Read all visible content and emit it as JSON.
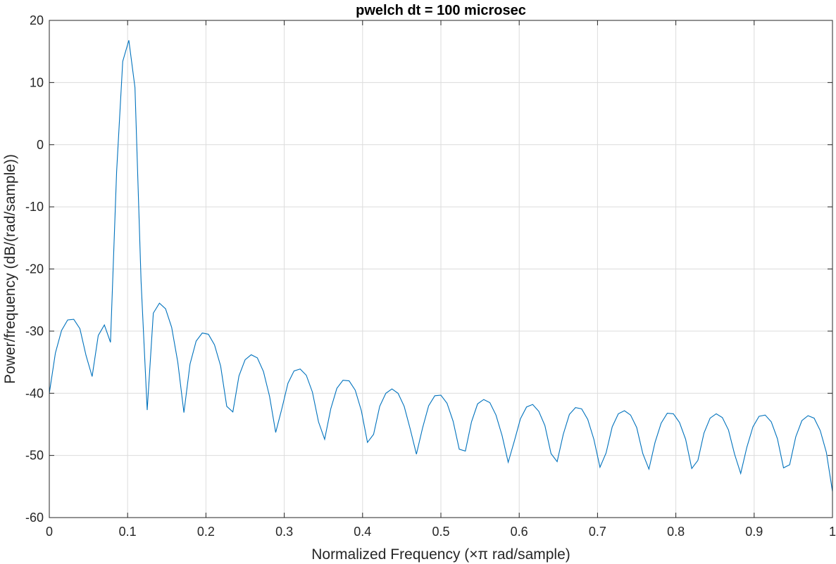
{
  "chart_data": {
    "type": "line",
    "title": "pwelch dt = 100 microsec",
    "xlabel": "Normalized Frequency  (×π rad/sample)",
    "ylabel": "Power/frequency (dB/(rad/sample))",
    "xlim": [
      0,
      1
    ],
    "ylim": [
      -60,
      20
    ],
    "xticks": [
      0,
      0.1,
      0.2,
      0.3,
      0.4,
      0.5,
      0.6,
      0.7,
      0.8,
      0.9,
      1
    ],
    "xtick_labels": [
      "0",
      "0.1",
      "0.2",
      "0.3",
      "0.4",
      "0.5",
      "0.6",
      "0.7",
      "0.8",
      "0.9",
      "1"
    ],
    "yticks": [
      -60,
      -50,
      -40,
      -30,
      -20,
      -10,
      0,
      10,
      20
    ],
    "ytick_labels": [
      "-60",
      "-50",
      "-40",
      "-30",
      "-20",
      "-10",
      "0",
      "10",
      "20"
    ],
    "grid": true,
    "line_color": "#0072BD",
    "series": [
      {
        "x": [
          0,
          0.0078125,
          0.015625,
          0.0234375,
          0.03125,
          0.0390625,
          0.046875,
          0.0546875,
          0.0625,
          0.0703125,
          0.078125,
          0.0859375,
          0.09375,
          0.1015625,
          0.109375,
          0.1171875,
          0.125,
          0.1328125,
          0.140625,
          0.1484375,
          0.15625,
          0.1640625,
          0.171875,
          0.1796875,
          0.1875,
          0.1953125,
          0.203125,
          0.2109375,
          0.21875,
          0.2265625,
          0.234375,
          0.2421875,
          0.25,
          0.2578125,
          0.265625,
          0.2734375,
          0.28125,
          0.2890625,
          0.296875,
          0.3046875,
          0.3125,
          0.3203125,
          0.328125,
          0.3359375,
          0.34375,
          0.3515625,
          0.359375,
          0.3671875,
          0.375,
          0.3828125,
          0.390625,
          0.3984375,
          0.40625,
          0.4140625,
          0.421875,
          0.4296875,
          0.4375,
          0.4453125,
          0.453125,
          0.4609375,
          0.46875,
          0.4765625,
          0.484375,
          0.4921875,
          0.5,
          0.5078125,
          0.515625,
          0.5234375,
          0.53125,
          0.5390625,
          0.546875,
          0.5546875,
          0.5625,
          0.5703125,
          0.578125,
          0.5859375,
          0.59375,
          0.6015625,
          0.609375,
          0.6171875,
          0.625,
          0.6328125,
          0.640625,
          0.6484375,
          0.65625,
          0.6640625,
          0.671875,
          0.6796875,
          0.6875,
          0.6953125,
          0.703125,
          0.7109375,
          0.71875,
          0.7265625,
          0.734375,
          0.7421875,
          0.75,
          0.7578125,
          0.765625,
          0.7734375,
          0.78125,
          0.7890625,
          0.796875,
          0.8046875,
          0.8125,
          0.8203125,
          0.828125,
          0.8359375,
          0.84375,
          0.8515625,
          0.859375,
          0.8671875,
          0.875,
          0.8828125,
          0.890625,
          0.8984375,
          0.90625,
          0.9140625,
          0.921875,
          0.9296875,
          0.9375,
          0.9453125,
          0.953125,
          0.9609375,
          0.96875,
          0.9765625,
          0.984375,
          0.9921875,
          1
        ],
        "y": [
          -40.0,
          -33.5,
          -29.9,
          -28.2,
          -28.1,
          -29.6,
          -33.9,
          -37.3,
          -30.7,
          -29.0,
          -31.8,
          -4.4,
          13.4,
          16.8,
          9.2,
          -22.0,
          -42.7,
          -27.1,
          -25.5,
          -26.4,
          -29.4,
          -35.0,
          -43.1,
          -35.3,
          -31.6,
          -30.3,
          -30.5,
          -32.2,
          -35.6,
          -42.1,
          -43.0,
          -37.2,
          -34.6,
          -33.8,
          -34.3,
          -36.5,
          -40.5,
          -46.3,
          -42.5,
          -38.4,
          -36.4,
          -36.1,
          -37.1,
          -39.8,
          -44.6,
          -47.4,
          -42.5,
          -39.2,
          -37.9,
          -38.0,
          -39.5,
          -42.8,
          -47.9,
          -46.6,
          -42.1,
          -40.0,
          -39.3,
          -40.0,
          -42.1,
          -45.8,
          -49.8,
          -45.6,
          -42.0,
          -40.4,
          -40.3,
          -41.6,
          -44.5,
          -49.0,
          -49.3,
          -44.6,
          -41.7,
          -41.0,
          -41.5,
          -43.5,
          -46.8,
          -51.1,
          -47.7,
          -44.1,
          -42.2,
          -41.8,
          -42.9,
          -45.2,
          -49.7,
          -51.0,
          -46.6,
          -43.4,
          -42.3,
          -42.5,
          -44.2,
          -47.4,
          -51.9,
          -49.6,
          -45.4,
          -43.3,
          -42.8,
          -43.5,
          -45.5,
          -49.7,
          -52.2,
          -47.9,
          -44.8,
          -43.2,
          -43.3,
          -44.7,
          -47.4,
          -52.1,
          -50.8,
          -46.4,
          -44.0,
          -43.3,
          -43.9,
          -45.9,
          -49.8,
          -52.9,
          -48.7,
          -45.4,
          -43.7,
          -43.5,
          -44.6,
          -47.3,
          -52.0,
          -51.5,
          -47.0,
          -44.4,
          -43.6,
          -44.0,
          -46.0,
          -49.5,
          -55.8
        ]
      }
    ]
  }
}
